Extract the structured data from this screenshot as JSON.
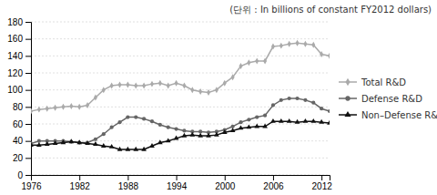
{
  "chart_data": {
    "type": "line",
    "title": "(단위 : In billions of constant FY2012 dollars)",
    "x": [
      1976,
      1977,
      1978,
      1979,
      1980,
      1981,
      1982,
      1983,
      1984,
      1985,
      1986,
      1987,
      1988,
      1989,
      1990,
      1991,
      1992,
      1993,
      1994,
      1995,
      1996,
      1997,
      1998,
      1999,
      2000,
      2001,
      2002,
      2003,
      2004,
      2005,
      2006,
      2007,
      2008,
      2009,
      2010,
      2011,
      2012,
      2013
    ],
    "series": [
      {
        "name": "Total R&D",
        "color": "#aaaaaa",
        "marker": "diamond",
        "values": [
          75,
          77,
          78,
          79,
          80,
          81,
          80,
          82,
          91,
          100,
          105,
          106,
          106,
          105,
          105,
          107,
          108,
          105,
          108,
          105,
          100,
          98,
          97,
          100,
          108,
          115,
          128,
          132,
          134,
          134,
          151,
          152,
          154,
          155,
          154,
          153,
          142,
          140
        ]
      },
      {
        "name": "Defense R&D",
        "color": "#666666",
        "marker": "circle",
        "values": [
          37,
          40,
          40,
          40,
          40,
          39,
          38,
          38,
          42,
          48,
          56,
          62,
          68,
          68,
          66,
          63,
          59,
          56,
          54,
          52,
          51,
          51,
          50,
          51,
          53,
          57,
          62,
          65,
          68,
          70,
          82,
          88,
          90,
          90,
          88,
          85,
          78,
          75
        ]
      },
      {
        "name": "Non–Defense R&D",
        "color": "#111111",
        "marker": "triangle",
        "values": [
          35,
          35,
          36,
          37,
          38,
          39,
          38,
          37,
          36,
          34,
          33,
          30,
          30,
          30,
          30,
          34,
          38,
          40,
          43,
          46,
          47,
          46,
          46,
          47,
          50,
          52,
          55,
          56,
          57,
          57,
          63,
          63,
          63,
          62,
          63,
          63,
          62,
          61
        ]
      }
    ],
    "xlim": [
      1976,
      2013
    ],
    "ylim": [
      0,
      180
    ],
    "xticks": [
      1976,
      1982,
      1988,
      1994,
      2000,
      2006,
      2012
    ],
    "yticks": [
      0,
      20,
      40,
      60,
      80,
      100,
      120,
      140,
      160,
      180
    ],
    "grid": true,
    "legend": "right"
  }
}
